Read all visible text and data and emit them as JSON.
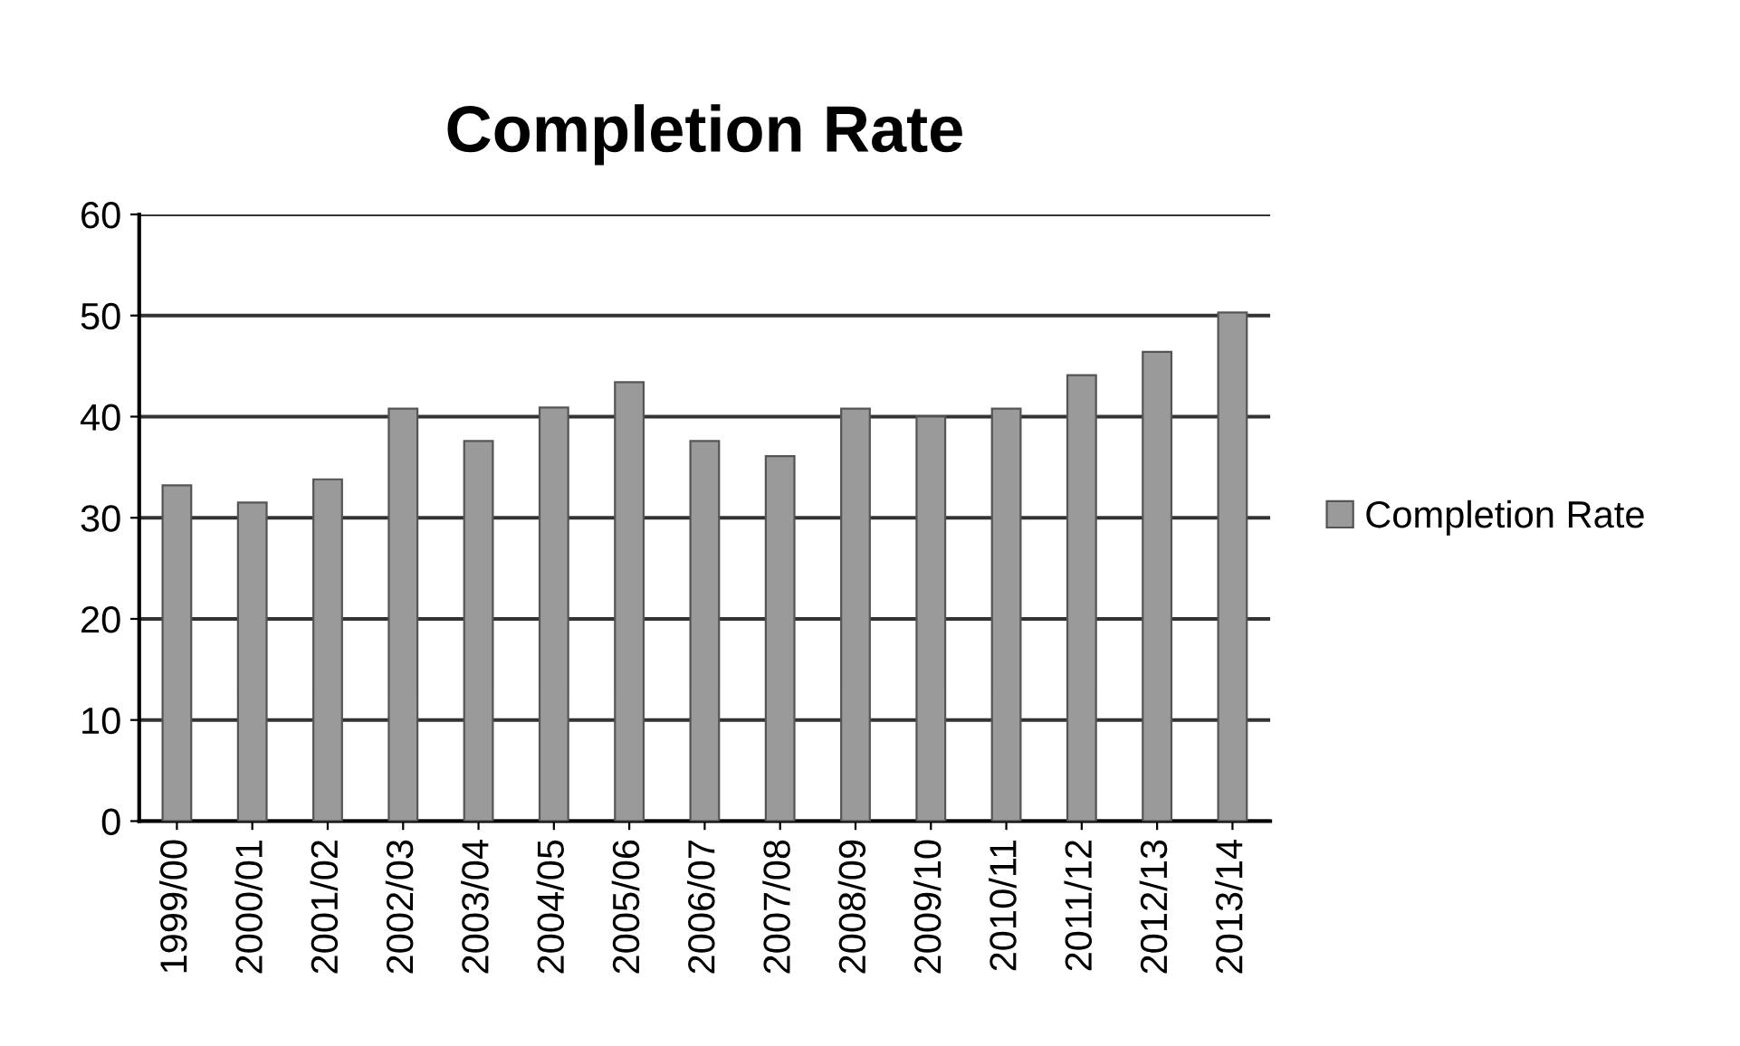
{
  "chart_data": {
    "type": "bar",
    "title": "Completion Rate",
    "categories": [
      "1999/00",
      "2000/01",
      "2001/02",
      "2002/03",
      "2003/04",
      "2004/05",
      "2005/06",
      "2006/07",
      "2007/08",
      "2008/09",
      "2009/10",
      "2010/11",
      "2011/12",
      "2012/13",
      "2013/14"
    ],
    "series": [
      {
        "name": "Completion Rate",
        "color": "#9a9a9a",
        "values": [
          33.2,
          31.5,
          33.8,
          40.8,
          37.6,
          40.9,
          43.4,
          37.6,
          36.1,
          40.8,
          40.0,
          40.8,
          44.1,
          46.4,
          50.3
        ]
      }
    ],
    "ylim": [
      0,
      60
    ],
    "yticks": [
      0,
      10,
      20,
      30,
      40,
      50,
      60
    ],
    "grid": "y",
    "legend": "right"
  }
}
